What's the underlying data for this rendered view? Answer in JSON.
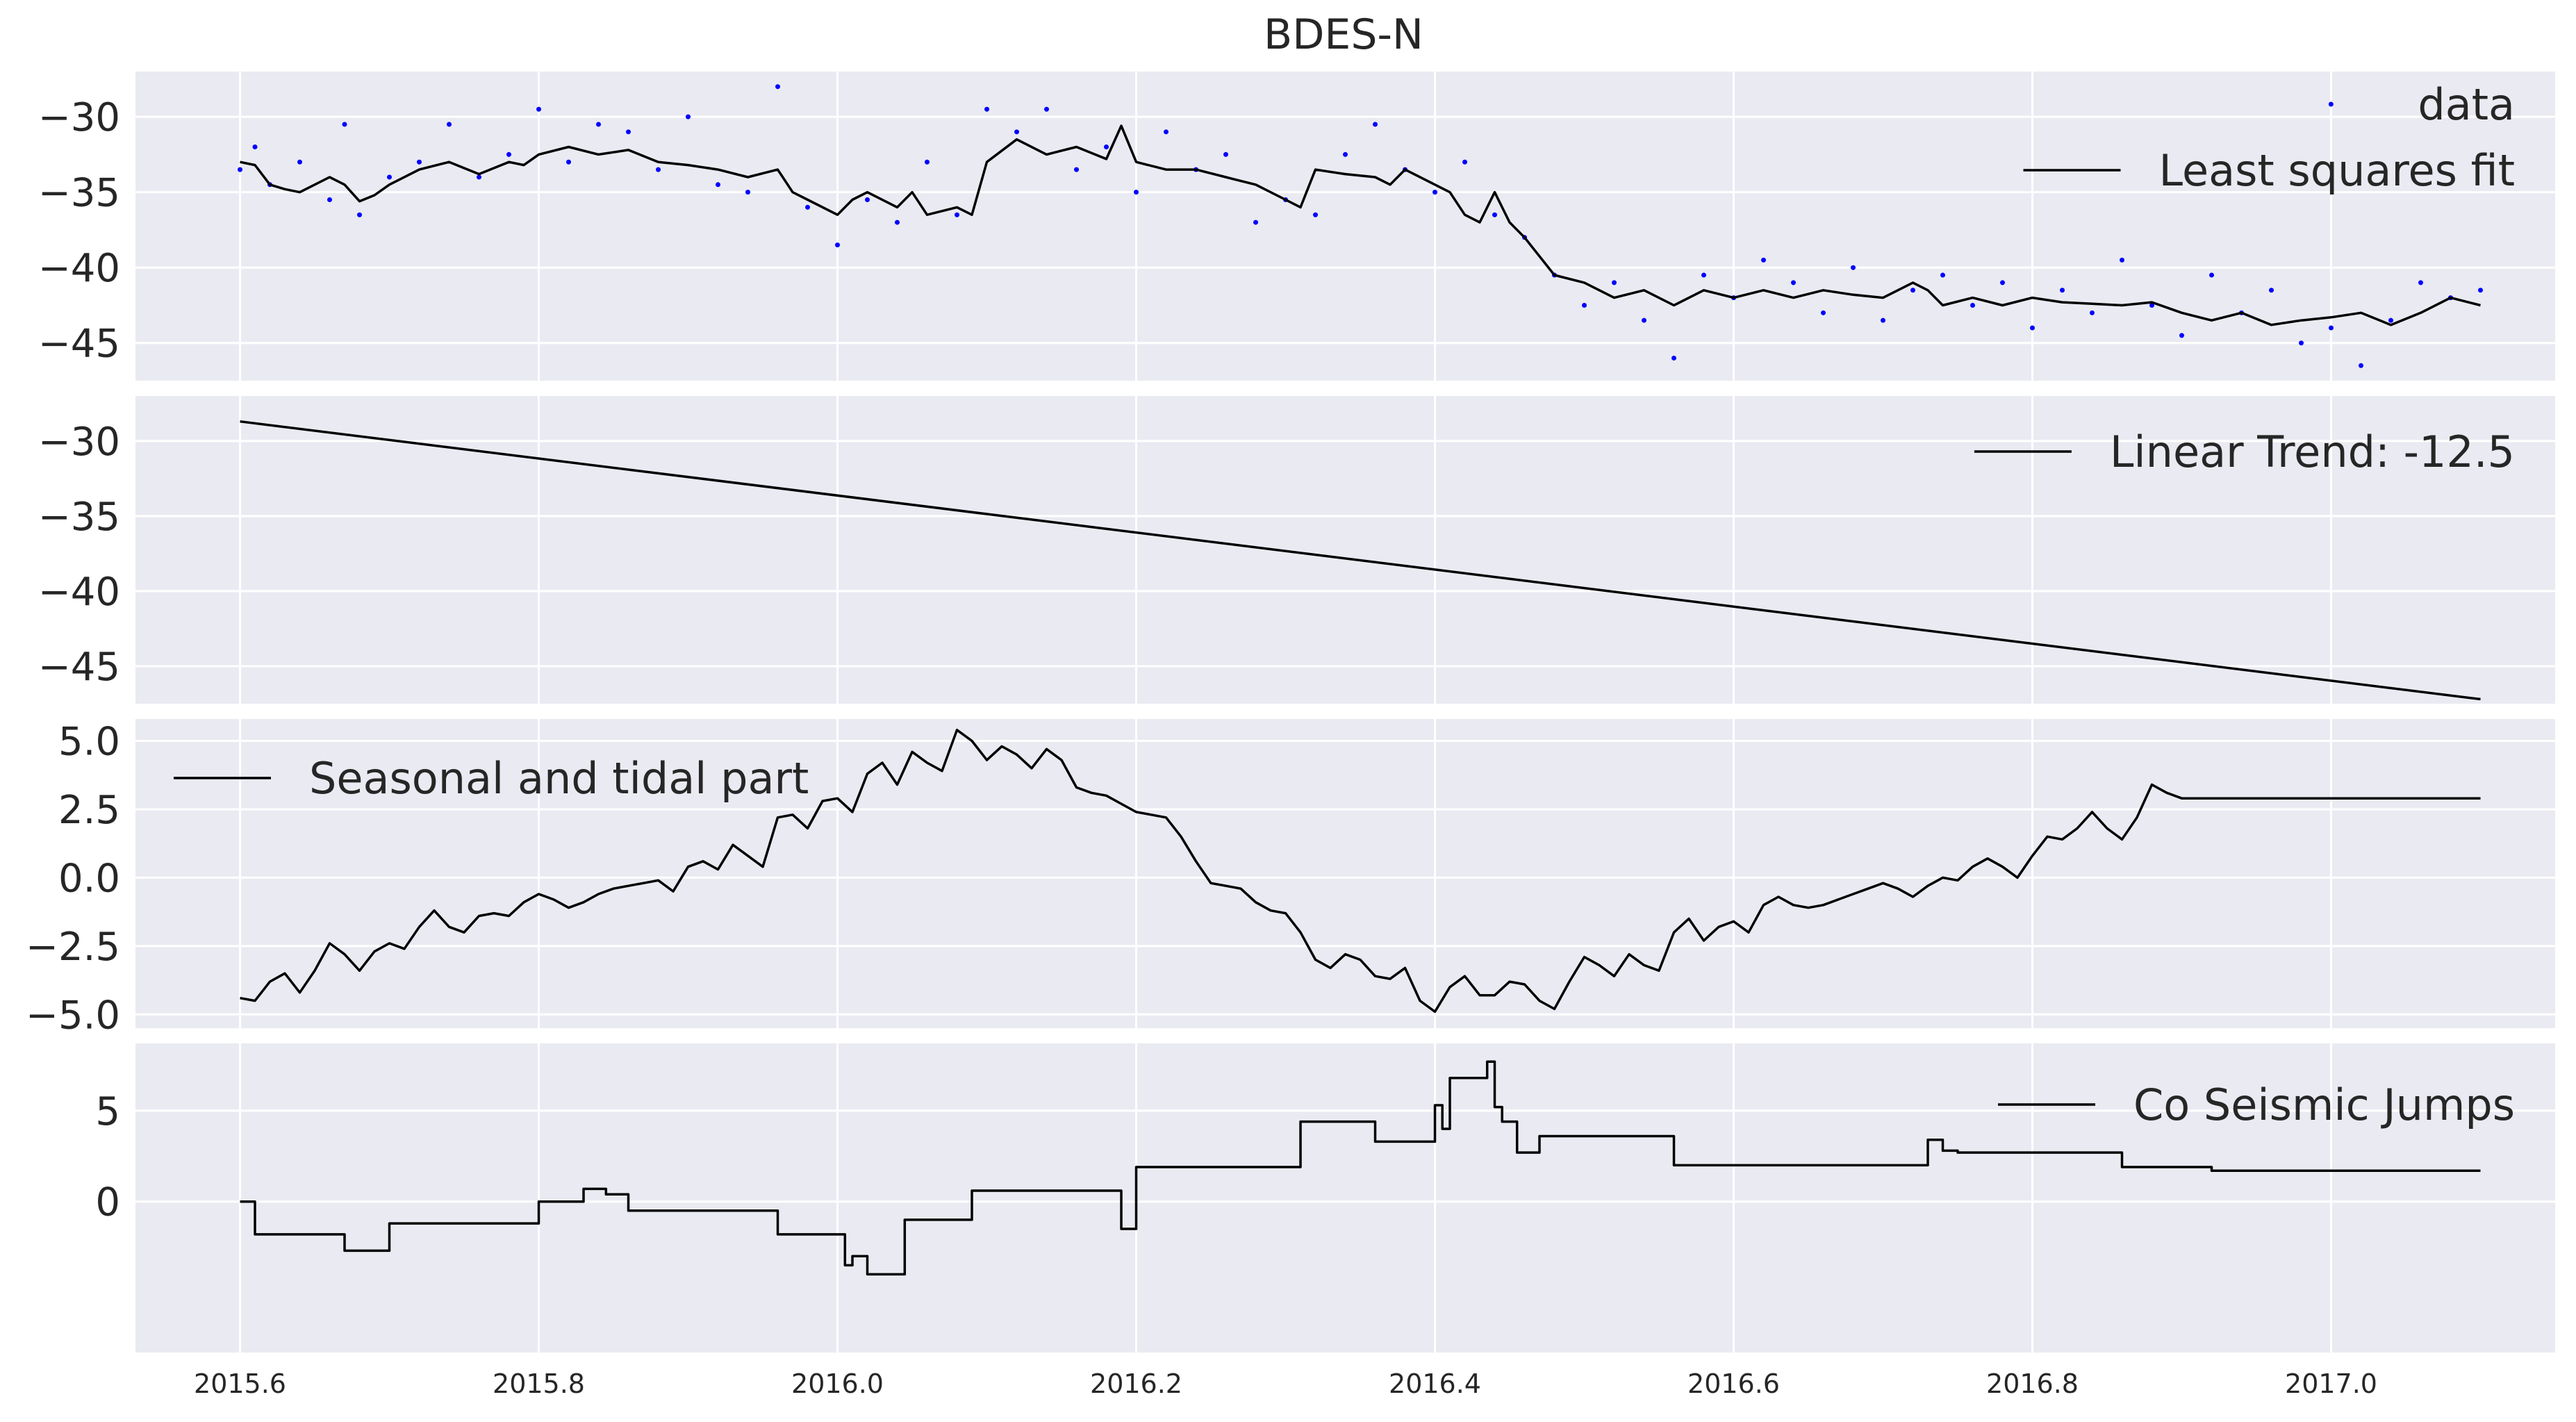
{
  "chart_data": {
    "type": "line",
    "title": "BDES-N",
    "xlim": [
      2015.53,
      2017.15
    ],
    "x_ticks": [
      2015.6,
      2015.8,
      2016.0,
      2016.2,
      2016.4,
      2016.6,
      2016.8,
      2017.0
    ],
    "x_tick_labels": [
      "2015.6",
      "2015.8",
      "2016.0",
      "2016.2",
      "2016.4",
      "2016.6",
      "2016.8",
      "2017.0"
    ],
    "grid": true,
    "panels": [
      {
        "ylim": [
          -47.5,
          -27.0
        ],
        "y_ticks": [
          -30,
          -35,
          -40,
          -45
        ],
        "y_tick_labels": [
          "−30",
          "−35",
          "−40",
          "−45"
        ],
        "legend_placement": "upper-right",
        "series": [
          {
            "name": "data",
            "kind": "scatter",
            "color": "#0000ff",
            "x": [
              2015.6,
              2015.61,
              2015.62,
              2015.64,
              2015.66,
              2015.67,
              2015.68,
              2015.7,
              2015.72,
              2015.74,
              2015.76,
              2015.78,
              2015.8,
              2015.82,
              2015.84,
              2015.86,
              2015.88,
              2015.9,
              2015.92,
              2015.94,
              2015.96,
              2015.98,
              2016.0,
              2016.02,
              2016.04,
              2016.06,
              2016.08,
              2016.1,
              2016.12,
              2016.14,
              2016.16,
              2016.18,
              2016.2,
              2016.22,
              2016.24,
              2016.26,
              2016.28,
              2016.3,
              2016.32,
              2016.34,
              2016.36,
              2016.38,
              2016.4,
              2016.42,
              2016.44,
              2016.46,
              2016.48,
              2016.5,
              2016.52,
              2016.54,
              2016.56,
              2016.58,
              2016.6,
              2016.62,
              2016.64,
              2016.66,
              2016.68,
              2016.7,
              2016.72,
              2016.74,
              2016.76,
              2016.78,
              2016.8,
              2016.82,
              2016.84,
              2016.86,
              2016.88,
              2016.9,
              2016.92,
              2016.94,
              2016.96,
              2016.98,
              2017.0,
              2017.02,
              2017.04,
              2017.06,
              2017.08,
              2017.1
            ],
            "y": [
              -33.5,
              -32.0,
              -34.5,
              -33.0,
              -35.5,
              -30.5,
              -36.5,
              -34.0,
              -33.0,
              -30.5,
              -34.0,
              -32.5,
              -29.5,
              -33.0,
              -30.5,
              -31.0,
              -33.5,
              -30.0,
              -34.5,
              -35.0,
              -28.0,
              -36.0,
              -38.5,
              -35.5,
              -37.0,
              -33.0,
              -36.5,
              -29.5,
              -31.0,
              -29.5,
              -33.5,
              -32.0,
              -35.0,
              -31.0,
              -33.5,
              -32.5,
              -37.0,
              -35.5,
              -36.5,
              -32.5,
              -30.5,
              -33.5,
              -35.0,
              -33.0,
              -36.5,
              -38.0,
              -40.5,
              -42.5,
              -41.0,
              -43.5,
              -46.0,
              -40.5,
              -42.0,
              -39.5,
              -41.0,
              -43.0,
              -40.0,
              -43.5,
              -41.5,
              -40.5,
              -42.5,
              -41.0,
              -44.0,
              -41.5,
              -43.0,
              -39.5,
              -42.5,
              -44.5,
              -40.5,
              -43.0,
              -41.5,
              -45.0,
              -44.0,
              -46.5,
              -43.5,
              -41.0,
              -42.0,
              -41.5
            ]
          },
          {
            "name": "Least squares fit",
            "kind": "line",
            "color": "#000000",
            "x": [
              2015.6,
              2015.61,
              2015.62,
              2015.63,
              2015.64,
              2015.66,
              2015.67,
              2015.68,
              2015.69,
              2015.7,
              2015.72,
              2015.74,
              2015.76,
              2015.78,
              2015.79,
              2015.8,
              2015.82,
              2015.84,
              2015.86,
              2015.88,
              2015.9,
              2015.92,
              2015.94,
              2015.96,
              2015.97,
              2015.98,
              2016.0,
              2016.01,
              2016.02,
              2016.04,
              2016.05,
              2016.06,
              2016.08,
              2016.09,
              2016.1,
              2016.12,
              2016.14,
              2016.16,
              2016.18,
              2016.19,
              2016.2,
              2016.22,
              2016.24,
              2016.26,
              2016.28,
              2016.3,
              2016.31,
              2016.32,
              2016.34,
              2016.36,
              2016.37,
              2016.38,
              2016.4,
              2016.41,
              2016.42,
              2016.43,
              2016.44,
              2016.45,
              2016.46,
              2016.48,
              2016.5,
              2016.52,
              2016.54,
              2016.56,
              2016.58,
              2016.6,
              2016.62,
              2016.64,
              2016.66,
              2016.68,
              2016.7,
              2016.72,
              2016.73,
              2016.74,
              2016.76,
              2016.78,
              2016.8,
              2016.82,
              2016.84,
              2016.86,
              2016.88,
              2016.9,
              2016.92,
              2016.94,
              2016.96,
              2016.98,
              2017.0,
              2017.02,
              2017.04,
              2017.06,
              2017.08,
              2017.1
            ],
            "y": [
              -33.0,
              -33.2,
              -34.5,
              -34.8,
              -35.0,
              -34.0,
              -34.5,
              -35.6,
              -35.2,
              -34.5,
              -33.5,
              -33.0,
              -33.8,
              -33.0,
              -33.2,
              -32.5,
              -32.0,
              -32.5,
              -32.2,
              -33.0,
              -33.2,
              -33.5,
              -34.0,
              -33.5,
              -35.0,
              -35.5,
              -36.5,
              -35.5,
              -35.0,
              -36.0,
              -35.0,
              -36.5,
              -36.0,
              -36.5,
              -33.0,
              -31.5,
              -32.5,
              -32.0,
              -32.8,
              -30.6,
              -33.0,
              -33.5,
              -33.5,
              -34.0,
              -34.5,
              -35.5,
              -36.0,
              -33.5,
              -33.8,
              -34.0,
              -34.5,
              -33.5,
              -34.5,
              -35.0,
              -36.5,
              -37.0,
              -35.0,
              -37.0,
              -38.0,
              -40.5,
              -41.0,
              -42.0,
              -41.5,
              -42.5,
              -41.5,
              -42.0,
              -41.5,
              -42.0,
              -41.5,
              -41.8,
              -42.0,
              -41.0,
              -41.5,
              -42.5,
              -42.0,
              -42.5,
              -42.0,
              -42.3,
              -42.4,
              -42.5,
              -42.3,
              -43.0,
              -43.5,
              -43.0,
              -43.8,
              -43.5,
              -43.3,
              -43.0,
              -43.8,
              -43.0,
              -42.0,
              -42.5
            ]
          }
        ]
      },
      {
        "ylim": [
          -47.5,
          -27.0
        ],
        "y_ticks": [
          -30,
          -35,
          -40,
          -45
        ],
        "y_tick_labels": [
          "−30",
          "−35",
          "−40",
          "−45"
        ],
        "legend_placement": "upper-right",
        "series": [
          {
            "name": "Linear Trend: -12.5",
            "kind": "line",
            "color": "#000000",
            "x": [
              2015.6,
              2017.1
            ],
            "y": [
              -28.7,
              -47.2
            ]
          }
        ]
      },
      {
        "ylim": [
          -5.5,
          5.8
        ],
        "y_ticks": [
          5.0,
          2.5,
          0.0,
          -2.5,
          -5.0
        ],
        "y_tick_labels": [
          "5.0",
          "2.5",
          "0.0",
          "−2.5",
          "−5.0"
        ],
        "legend_placement": "upper-left",
        "series": [
          {
            "name": "Seasonal and tidal part",
            "kind": "line",
            "color": "#000000",
            "x": [
              2015.6,
              2015.61,
              2015.62,
              2015.63,
              2015.64,
              2015.65,
              2015.66,
              2015.67,
              2015.68,
              2015.69,
              2015.7,
              2015.71,
              2015.72,
              2015.73,
              2015.74,
              2015.75,
              2015.76,
              2015.77,
              2015.78,
              2015.79,
              2015.8,
              2015.81,
              2015.82,
              2015.83,
              2015.84,
              2015.85,
              2015.86,
              2015.87,
              2015.88,
              2015.89,
              2015.9,
              2015.91,
              2015.92,
              2015.93,
              2015.94,
              2015.95,
              2015.96,
              2015.97,
              2015.98,
              2015.99,
              2016.0,
              2016.01,
              2016.02,
              2016.03,
              2016.04,
              2016.05,
              2016.06,
              2016.07,
              2016.08,
              2016.09,
              2016.1,
              2016.11,
              2016.12,
              2016.13,
              2016.14,
              2016.15,
              2016.16,
              2016.17,
              2016.18,
              2016.19,
              2016.2,
              2016.21,
              2016.22,
              2016.23,
              2016.24,
              2016.25,
              2016.26,
              2016.27,
              2016.28,
              2016.29,
              2016.3,
              2016.31,
              2016.32,
              2016.33,
              2016.34,
              2016.35,
              2016.36,
              2016.37,
              2016.38,
              2016.39,
              2016.4,
              2016.41,
              2016.42,
              2016.43,
              2016.44,
              2016.45,
              2016.46,
              2016.47,
              2016.48,
              2016.49,
              2016.5,
              2016.51,
              2016.52,
              2016.53,
              2016.54,
              2016.55,
              2016.56,
              2016.57,
              2016.58,
              2016.59,
              2016.6,
              2016.61,
              2016.62,
              2016.63,
              2016.64,
              2016.65,
              2016.66,
              2016.67,
              2016.68,
              2016.69,
              2016.7,
              2016.71,
              2016.72,
              2016.73,
              2016.74,
              2016.75,
              2016.76,
              2016.77,
              2016.78,
              2016.79,
              2016.8,
              2016.81,
              2016.82,
              2016.83,
              2016.84,
              2016.85,
              2016.86,
              2016.87,
              2016.88,
              2016.89,
              2016.9,
              2016.91,
              2016.92,
              2016.93,
              2016.94,
              2016.95,
              2016.96,
              2016.97,
              2016.98,
              2016.99,
              2017.0,
              2017.01,
              2017.02,
              2017.03,
              2017.04,
              2017.05,
              2017.06,
              2017.07,
              2017.08,
              2017.09,
              2017.1
            ],
            "y": [
              -4.4,
              -4.5,
              -3.8,
              -3.5,
              -4.2,
              -3.4,
              -2.4,
              -2.8,
              -3.4,
              -2.7,
              -2.4,
              -2.6,
              -1.8,
              -1.2,
              -1.8,
              -2.0,
              -1.4,
              -1.3,
              -1.4,
              -0.9,
              -0.6,
              -0.8,
              -1.1,
              -0.9,
              -0.6,
              -0.4,
              -0.3,
              -0.2,
              -0.1,
              -0.5,
              0.4,
              0.6,
              0.3,
              1.2,
              0.8,
              0.4,
              2.2,
              2.3,
              1.8,
              2.8,
              2.9,
              2.4,
              3.8,
              4.2,
              3.4,
              4.6,
              4.2,
              3.9,
              5.4,
              5.0,
              4.3,
              4.8,
              4.5,
              4.0,
              4.7,
              4.3,
              3.3,
              3.1,
              3.0,
              2.7,
              2.4,
              2.3,
              2.2,
              1.5,
              0.6,
              -0.2,
              -0.3,
              -0.4,
              -0.9,
              -1.2,
              -1.3,
              -2.0,
              -3.0,
              -3.3,
              -2.8,
              -3.0,
              -3.6,
              -3.7,
              -3.3,
              -4.5,
              -4.9,
              -4.0,
              -3.6,
              -4.3,
              -4.3,
              -3.8,
              -3.9,
              -4.5,
              -4.8,
              -3.8,
              -2.9,
              -3.2,
              -3.6,
              -2.8,
              -3.2,
              -3.4,
              -2.0,
              -1.5,
              -2.3,
              -1.8,
              -1.6,
              -2.0,
              -1.0,
              -0.7,
              -1.0,
              -1.1,
              -1.0,
              -0.8,
              -0.6,
              -0.4,
              -0.2,
              -0.4,
              -0.7,
              -0.3,
              0.0,
              -0.1,
              0.4,
              0.7,
              0.4,
              0.0,
              0.8,
              1.5,
              1.4,
              1.8,
              2.4,
              1.8,
              1.4,
              2.2,
              3.4,
              3.1,
              2.9,
              2.9,
              2.9,
              2.9,
              2.9,
              2.9,
              2.9,
              2.9,
              2.9,
              2.9,
              2.9,
              2.9,
              2.9,
              2.9,
              2.9,
              2.9,
              2.9,
              2.9,
              2.9,
              2.9,
              2.9
            ]
          }
        ]
      },
      {
        "ylim": [
          -8.3,
          8.7
        ],
        "y_ticks": [
          5,
          0
        ],
        "y_tick_labels": [
          "5",
          "0"
        ],
        "legend_placement": "upper-right",
        "series": [
          {
            "name": "Co Seismic Jumps",
            "kind": "step",
            "color": "#000000",
            "x": [
              2015.6,
              2015.61,
              2015.61,
              2015.67,
              2015.67,
              2015.7,
              2015.7,
              2015.8,
              2015.8,
              2015.83,
              2015.83,
              2015.845,
              2015.845,
              2015.86,
              2015.86,
              2015.96,
              2015.96,
              2016.005,
              2016.005,
              2016.01,
              2016.01,
              2016.02,
              2016.02,
              2016.045,
              2016.045,
              2016.09,
              2016.09,
              2016.19,
              2016.19,
              2016.2,
              2016.2,
              2016.31,
              2016.31,
              2016.32,
              2016.32,
              2016.36,
              2016.36,
              2016.4,
              2016.4,
              2016.405,
              2016.405,
              2016.41,
              2016.41,
              2016.435,
              2016.435,
              2016.44,
              2016.44,
              2016.445,
              2016.445,
              2016.455,
              2016.455,
              2016.47,
              2016.47,
              2016.56,
              2016.56,
              2016.73,
              2016.73,
              2016.74,
              2016.74,
              2016.75,
              2016.75,
              2016.86,
              2016.86,
              2016.92,
              2016.92,
              2017.1
            ],
            "y": [
              0.0,
              0.0,
              -1.8,
              -1.8,
              -2.7,
              -2.7,
              -1.2,
              -1.2,
              0.0,
              0.0,
              0.7,
              0.7,
              0.4,
              0.4,
              -0.5,
              -0.5,
              -1.8,
              -1.8,
              -3.5,
              -3.5,
              -3.0,
              -3.0,
              -4.0,
              -4.0,
              -1.0,
              -1.0,
              0.6,
              0.6,
              -1.5,
              -1.5,
              1.9,
              1.9,
              4.4,
              4.4,
              4.4,
              4.4,
              3.3,
              3.3,
              5.3,
              5.3,
              4.0,
              4.0,
              6.8,
              6.8,
              7.7,
              7.7,
              5.2,
              5.2,
              4.4,
              4.4,
              2.7,
              2.7,
              3.6,
              3.6,
              2.0,
              2.0,
              3.4,
              3.4,
              2.8,
              2.8,
              2.7,
              2.7,
              1.9,
              1.9,
              1.7,
              1.7
            ]
          }
        ]
      }
    ]
  }
}
